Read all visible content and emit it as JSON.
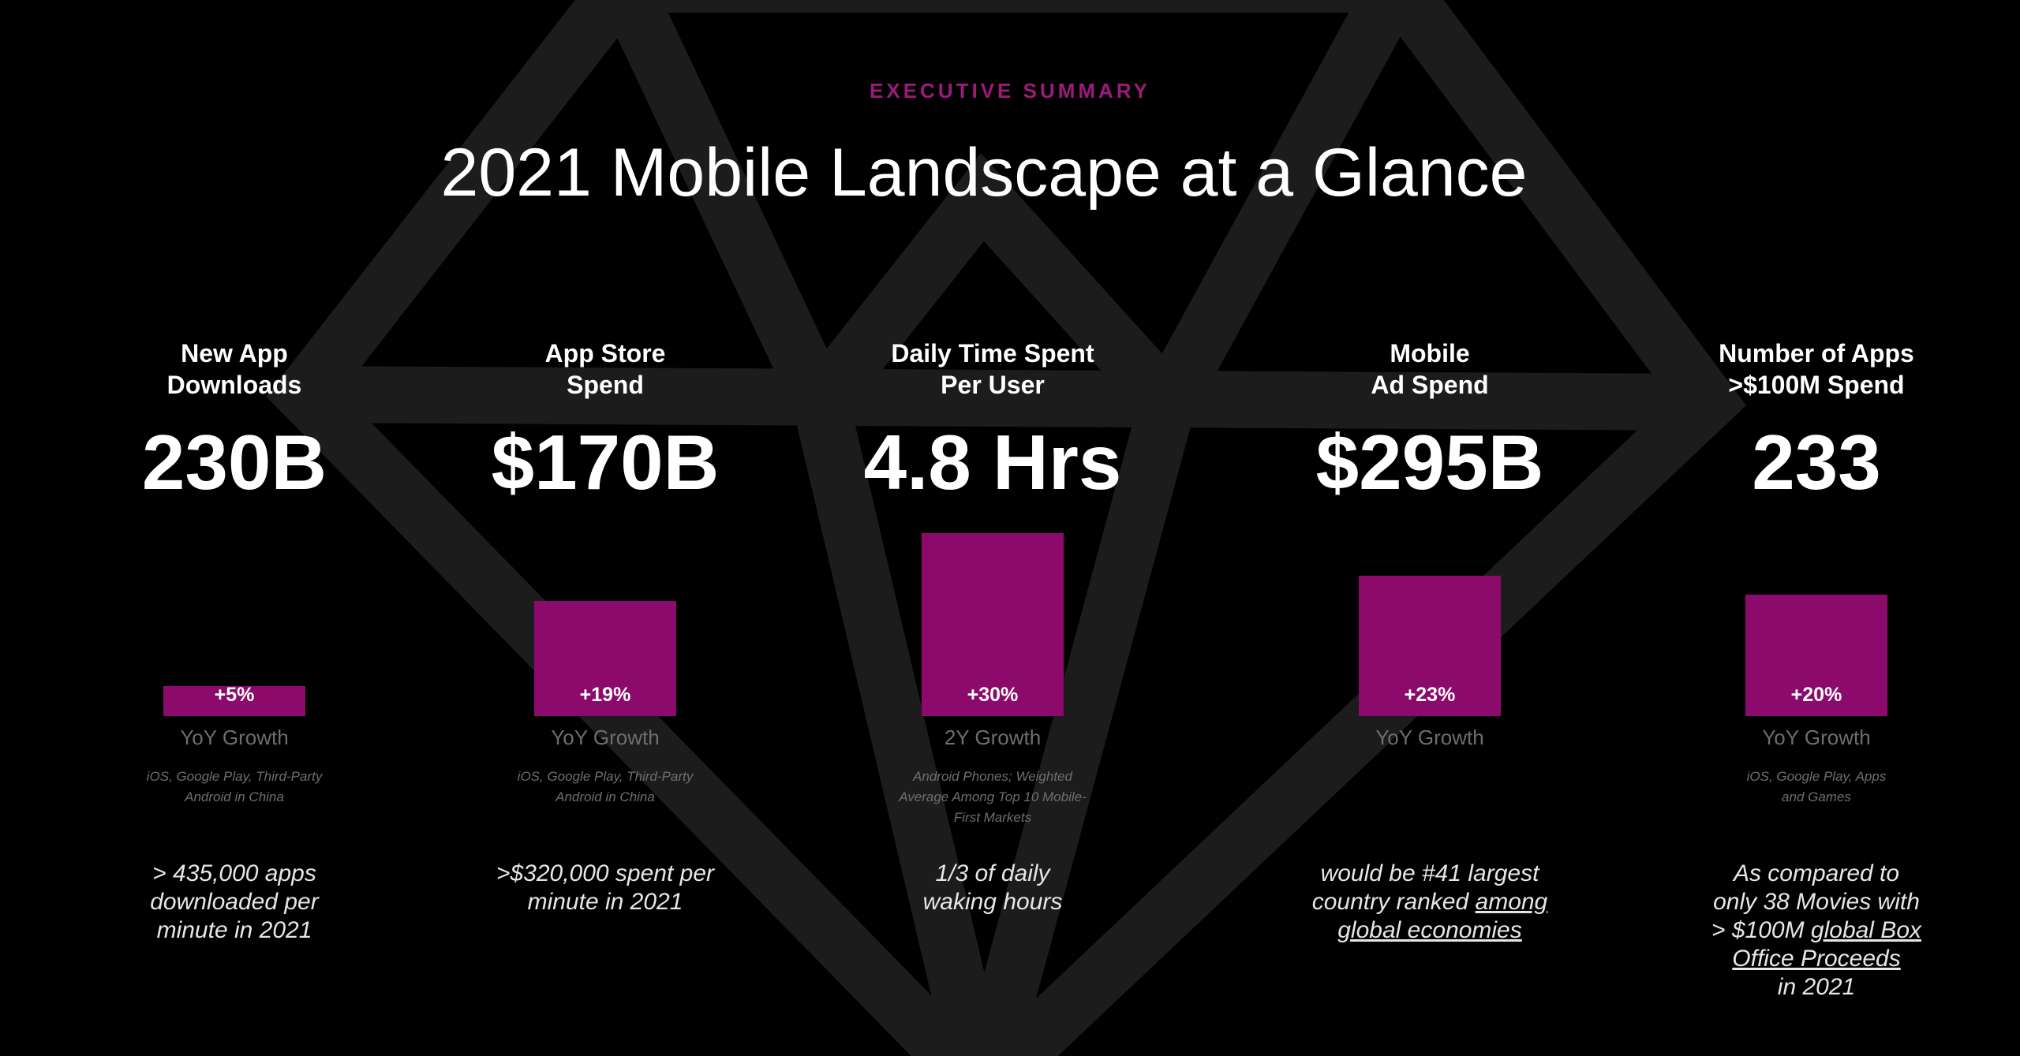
{
  "header": {
    "eyebrow": "EXECUTIVE SUMMARY",
    "title": "2021 Mobile Landscape at a Glance"
  },
  "colors": {
    "background": "#000000",
    "accent": "#8c0a6b",
    "eyebrow": "#9e1a7a",
    "muted_text": "#6e6e6e",
    "diamond": "#1c1c1c"
  },
  "metrics": [
    {
      "label_lines": [
        "New App",
        "Downloads"
      ],
      "value": "230B",
      "growth": "+5%",
      "growth_level": 5,
      "caption": "YoY Growth",
      "source_lines": [
        "iOS, Google Play, Third-Party",
        "Android in China"
      ],
      "note_lines": [
        [
          {
            "text": "> 435,000 apps",
            "u": false
          }
        ],
        [
          {
            "text": "downloaded per",
            "u": false
          }
        ],
        [
          {
            "text": "minute in 2021",
            "u": false
          }
        ]
      ]
    },
    {
      "label_lines": [
        "App Store",
        "Spend"
      ],
      "value": "$170B",
      "growth": "+19%",
      "growth_level": 19,
      "caption": "YoY Growth",
      "source_lines": [
        "iOS, Google Play, Third-Party",
        "Android in China"
      ],
      "note_lines": [
        [
          {
            "text": ">$320,000 spent per",
            "u": false
          }
        ],
        [
          {
            "text": "minute in 2021",
            "u": false
          }
        ]
      ]
    },
    {
      "label_lines": [
        "Daily Time Spent",
        "Per User"
      ],
      "value": "4.8 Hrs",
      "growth": "+30%",
      "growth_level": 30,
      "caption": "2Y Growth",
      "source_lines": [
        "Android Phones; Weighted",
        "Average Among Top 10 Mobile-",
        "First  Markets"
      ],
      "note_lines": [
        [
          {
            "text": "1/3 of daily",
            "u": false
          }
        ],
        [
          {
            "text": "waking hours",
            "u": false
          }
        ]
      ]
    },
    {
      "label_lines": [
        "Mobile",
        "Ad Spend"
      ],
      "value": "$295B",
      "growth": "+23%",
      "growth_level": 23,
      "caption": "YoY Growth",
      "source_lines": [],
      "note_lines": [
        [
          {
            "text": "would be #41 largest",
            "u": false
          }
        ],
        [
          {
            "text": "country ranked ",
            "u": false
          },
          {
            "text": "among ",
            "u": true
          }
        ],
        [
          {
            "text": "global economies",
            "u": true
          }
        ]
      ]
    },
    {
      "label_lines": [
        "Number of Apps",
        ">$100M Spend"
      ],
      "value": "233",
      "growth": "+20%",
      "growth_level": 20,
      "caption": "YoY Growth",
      "source_lines": [
        "iOS, Google Play, Apps",
        "and Games"
      ],
      "note_lines": [
        [
          {
            "text": "As compared to",
            "u": false
          }
        ],
        [
          {
            "text": "only 38 Movies with",
            "u": false
          }
        ],
        [
          {
            "text": "> $100M ",
            "u": false
          },
          {
            "text": "global Box",
            "u": true
          }
        ],
        [
          {
            "text": "Office Proceeds",
            "u": true
          }
        ],
        [
          {
            "text": "in 2021",
            "u": false
          }
        ]
      ]
    }
  ]
}
